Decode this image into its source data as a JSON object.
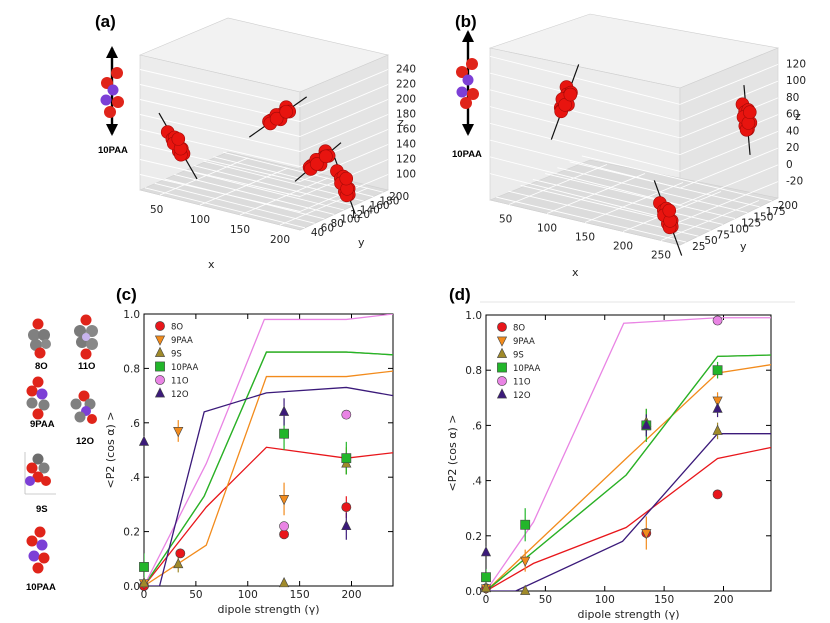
{
  "panels": {
    "a": {
      "label": "(a)",
      "molecule": "10PAA",
      "x_label": "x",
      "y_label": "y",
      "z_label": "z",
      "x_ticks": [
        "50",
        "100",
        "150",
        "200"
      ],
      "y_ticks": [
        "40",
        "60",
        "80",
        "100",
        "120",
        "140",
        "160",
        "180",
        "200"
      ],
      "z_ticks": [
        "100",
        "120",
        "140",
        "160",
        "180",
        "200",
        "220",
        "240"
      ]
    },
    "b": {
      "label": "(b)",
      "molecule": "10PAA",
      "x_label": "x",
      "y_label": "y",
      "z_label": "z",
      "x_ticks": [
        "50",
        "100",
        "150",
        "200",
        "250"
      ],
      "y_ticks": [
        "25",
        "50",
        "75",
        "100",
        "125",
        "150",
        "175",
        "200"
      ],
      "z_ticks": [
        "-20",
        "0",
        "20",
        "40",
        "60",
        "80",
        "100",
        "120"
      ]
    },
    "c": {
      "label": "(c)"
    },
    "d": {
      "label": "(d)"
    }
  },
  "molecule_labels": [
    "8O",
    "11O",
    "9PAA",
    "12O",
    "9S",
    "10PAA"
  ],
  "chart_data": [
    {
      "id": "c",
      "type": "scatter",
      "xlabel": "dipole strength (γ)",
      "ylabel": "<P2 (cos α) >",
      "xlim": [
        0,
        240
      ],
      "ylim": [
        0,
        1.0
      ],
      "x_ticks": [
        "0",
        "50",
        "100",
        "150",
        "200"
      ],
      "y_ticks": [
        "0.0",
        "0.2",
        ".4",
        ".6",
        "0.8",
        "1.0"
      ],
      "legend": [
        "8O",
        "9PAA",
        "9S",
        "10PAA",
        "11O",
        "12O"
      ],
      "series": [
        {
          "name": "8O",
          "color": "#e8161b",
          "marker": "circle",
          "points": [
            [
              0,
              0.0,
              0
            ],
            [
              35,
              0.12,
              0
            ],
            [
              135,
              0.19,
              0
            ],
            [
              195,
              0.29,
              0.04
            ]
          ],
          "line": [
            [
              0,
              0.0
            ],
            [
              60,
              0.29
            ],
            [
              118,
              0.51
            ],
            [
              195,
              0.47
            ],
            [
              240,
              0.49
            ]
          ]
        },
        {
          "name": "9PAA",
          "color": "#f28b1c",
          "marker": "triangle-down",
          "points": [
            [
              0,
              0.01,
              0
            ],
            [
              33,
              0.57,
              0.04
            ],
            [
              135,
              0.32,
              0.06
            ],
            [
              195,
              0.46,
              0.05
            ]
          ],
          "line": [
            [
              0,
              0.0
            ],
            [
              60,
              0.15
            ],
            [
              118,
              0.77
            ],
            [
              195,
              0.77
            ],
            [
              240,
              0.79
            ]
          ]
        },
        {
          "name": "9S",
          "color": "#a08a2a",
          "marker": "triangle-up",
          "points": [
            [
              0,
              0.01,
              0
            ],
            [
              33,
              0.08,
              0.03
            ],
            [
              135,
              0.01,
              0
            ],
            [
              195,
              0.45,
              0.04
            ]
          ],
          "line": [
            [
              0,
              0.0
            ],
            [
              58,
              0.33
            ],
            [
              118,
              0.86
            ],
            [
              195,
              0.86
            ],
            [
              240,
              0.85
            ]
          ]
        },
        {
          "name": "10PAA",
          "color": "#22b62a",
          "marker": "square",
          "points": [
            [
              0,
              0.07,
              0.05
            ],
            [
              135,
              0.56,
              0.06
            ],
            [
              195,
              0.47,
              0.06
            ]
          ],
          "line": [
            [
              0,
              0.0
            ],
            [
              58,
              0.33
            ],
            [
              118,
              0.86
            ],
            [
              195,
              0.86
            ],
            [
              240,
              0.85
            ]
          ]
        },
        {
          "name": "11O",
          "color": "#e984e4",
          "marker": "circle",
          "points": [
            [
              135,
              0.22,
              0
            ],
            [
              195,
              0.63,
              0
            ]
          ],
          "line": [
            [
              0,
              0.0
            ],
            [
              60,
              0.45
            ],
            [
              116,
              0.98
            ],
            [
              195,
              0.98
            ],
            [
              240,
              1.0
            ]
          ]
        },
        {
          "name": "12O",
          "color": "#3b1a7a",
          "marker": "triangle-up",
          "points": [
            [
              0,
              0.53,
              0
            ],
            [
              135,
              0.64,
              0.05
            ],
            [
              195,
              0.22,
              0.05
            ]
          ],
          "line": [
            [
              0,
              0.0
            ],
            [
              15,
              0.0
            ],
            [
              58,
              0.64
            ],
            [
              118,
              0.71
            ],
            [
              195,
              0.73
            ],
            [
              240,
              0.7
            ]
          ]
        }
      ]
    },
    {
      "id": "d",
      "type": "scatter",
      "xlabel": "dipole strength (γ)",
      "ylabel": "<P2 (cos α) >",
      "xlim": [
        0,
        240
      ],
      "ylim": [
        0,
        1.0
      ],
      "x_ticks": [
        "0",
        "50",
        "100",
        "150",
        "200"
      ],
      "y_ticks": [
        "0.0",
        "0.2",
        ".4",
        ".6",
        "0.8",
        "1.0"
      ],
      "legend": [
        "8O",
        "9PAA",
        "9S",
        "10PAA",
        "11O",
        "12O"
      ],
      "series": [
        {
          "name": "8O",
          "color": "#e8161b",
          "marker": "circle",
          "points": [
            [
              0,
              0.01,
              0
            ],
            [
              135,
              0.21,
              0
            ],
            [
              195,
              0.35,
              0
            ]
          ],
          "line": [
            [
              0,
              0.0
            ],
            [
              40,
              0.1
            ],
            [
              118,
              0.23
            ],
            [
              195,
              0.48
            ],
            [
              240,
              0.52
            ]
          ]
        },
        {
          "name": "9PAA",
          "color": "#f28b1c",
          "marker": "triangle-down",
          "points": [
            [
              0,
              0.01,
              0
            ],
            [
              33,
              0.11,
              0.04
            ],
            [
              135,
              0.21,
              0.06
            ],
            [
              195,
              0.69,
              0.03
            ]
          ],
          "line": [
            [
              0,
              0.0
            ],
            [
              118,
              0.48
            ],
            [
              195,
              0.79
            ],
            [
              240,
              0.82
            ]
          ]
        },
        {
          "name": "9S",
          "color": "#a08a2a",
          "marker": "triangle-up",
          "points": [
            [
              0,
              0.01,
              0
            ],
            [
              33,
              0.0,
              0
            ],
            [
              135,
              0.61,
              0.05
            ],
            [
              195,
              0.58,
              0.03
            ]
          ],
          "line": [
            [
              0,
              0.0
            ],
            [
              118,
              0.42
            ],
            [
              195,
              0.85
            ],
            [
              240,
              0.855
            ]
          ]
        },
        {
          "name": "10PAA",
          "color": "#22b62a",
          "marker": "square",
          "points": [
            [
              0,
              0.05,
              0.03
            ],
            [
              33,
              0.24,
              0.06
            ],
            [
              135,
              0.6,
              0.06
            ],
            [
              195,
              0.8,
              0.03
            ]
          ],
          "line": [
            [
              0,
              0.0
            ],
            [
              118,
              0.42
            ],
            [
              195,
              0.85
            ],
            [
              240,
              0.855
            ]
          ]
        },
        {
          "name": "11O",
          "color": "#e984e4",
          "marker": "circle",
          "points": [
            [
              195,
              0.98,
              0
            ]
          ],
          "line": [
            [
              0,
              0.0
            ],
            [
              40,
              0.25
            ],
            [
              116,
              0.97
            ],
            [
              195,
              0.99
            ],
            [
              240,
              0.99
            ]
          ]
        },
        {
          "name": "12O",
          "color": "#3b1a7a",
          "marker": "triangle-up",
          "points": [
            [
              0,
              0.14,
              0
            ],
            [
              135,
              0.6,
              0.04
            ],
            [
              195,
              0.66,
              0.03
            ]
          ],
          "line": [
            [
              0,
              0.0
            ],
            [
              25,
              0.0
            ],
            [
              115,
              0.18
            ],
            [
              195,
              0.57
            ],
            [
              240,
              0.57
            ]
          ]
        }
      ]
    }
  ]
}
